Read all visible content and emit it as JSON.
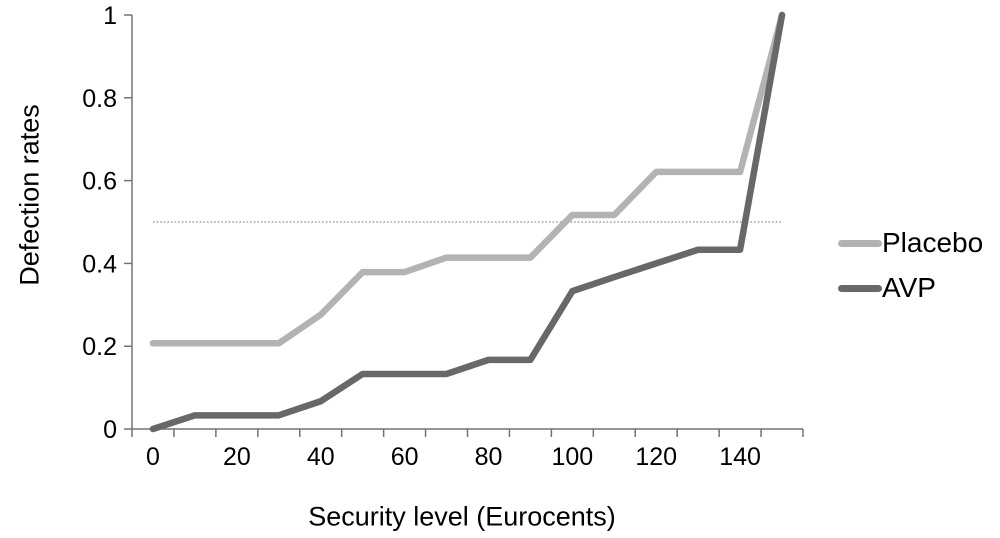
{
  "chart_data": {
    "type": "line",
    "title": "",
    "xlabel": "Security level (Eurocents)",
    "ylabel": "Defection rates",
    "x": [
      0,
      10,
      20,
      30,
      40,
      50,
      60,
      70,
      80,
      90,
      100,
      110,
      120,
      130,
      140,
      150
    ],
    "series": [
      {
        "name": "Placebo",
        "color": "#b3b3b3",
        "values": [
          0.207,
          0.207,
          0.207,
          0.207,
          0.276,
          0.379,
          0.379,
          0.414,
          0.414,
          0.414,
          0.517,
          0.517,
          0.621,
          0.621,
          0.621,
          1.0
        ]
      },
      {
        "name": "AVP",
        "color": "#686868",
        "values": [
          0.0,
          0.033,
          0.033,
          0.033,
          0.067,
          0.133,
          0.133,
          0.133,
          0.167,
          0.167,
          0.333,
          0.367,
          0.4,
          0.433,
          0.433,
          1.0
        ]
      }
    ],
    "reference_line": {
      "y": 0.5,
      "style": "dotted",
      "color": "#8c8c8c"
    },
    "ylim": [
      0,
      1
    ],
    "y_ticks": [
      0,
      0.2,
      0.4,
      0.6,
      0.8,
      1
    ],
    "y_tick_labels": [
      "0",
      "0.2",
      "0.4",
      "0.6",
      "0.8",
      "1"
    ],
    "x_tick_label_positions": [
      0,
      2,
      4,
      6,
      8,
      10,
      12,
      14
    ],
    "x_tick_labels": [
      "0",
      "20",
      "40",
      "60",
      "80",
      "100",
      "120",
      "140"
    ],
    "legend_position": "right",
    "grid": false,
    "axis_color": "#737373",
    "tick_label_color": "#000000",
    "line_width": 6.5
  }
}
